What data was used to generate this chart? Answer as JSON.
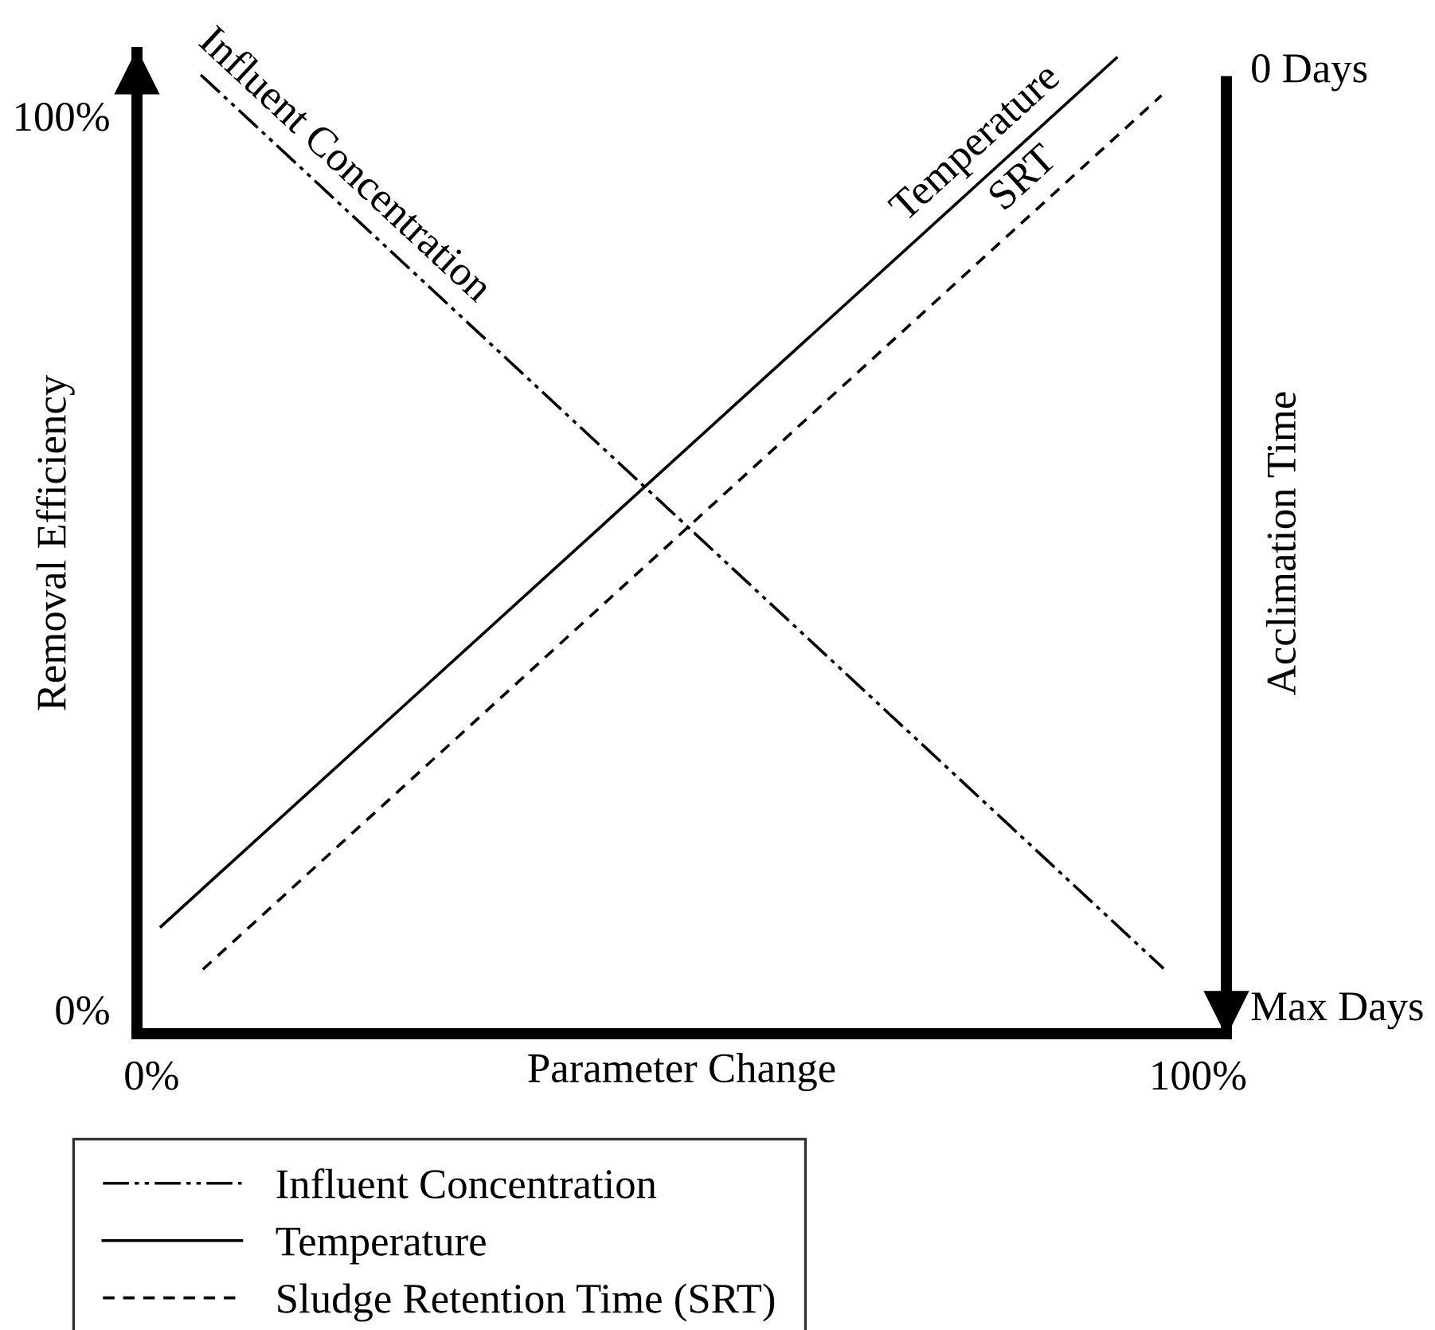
{
  "chart_data": {
    "type": "line",
    "xlabel": "Parameter Change",
    "ylabel": "Removal Efficiency",
    "y2label": "Acclimation Time",
    "xlim": [
      -1.4,
      102.7
    ],
    "xticks": [
      {
        "value": 0,
        "label": "0%"
      },
      {
        "value": 100,
        "label": "100%"
      }
    ],
    "ylim": [
      -2.7,
      107.1
    ],
    "yticks": [
      {
        "value": 0,
        "label": "0%"
      },
      {
        "value": 100,
        "label": "100%"
      }
    ],
    "grid": false,
    "legend": "bottom left",
    "marker": "none",
    "series": [
      {
        "name": "Influent Concentration",
        "color": "#000000",
        "line_style": "dashdotdot",
        "x": [
          4.7,
          96.7
        ],
        "values": [
          104.6,
          4.6
        ]
      },
      {
        "name": "Temperature",
        "color": "#000000",
        "line_style": "solid",
        "x": [
          0.9,
          92.2
        ],
        "values": [
          9.3,
          106.5
        ]
      },
      {
        "name": "Sludge Retention Time (SRT)",
        "color": "#000000",
        "line_style": "dashed",
        "x": [
          4.9,
          96.5
        ],
        "values": [
          4.5,
          102.3
        ]
      }
    ],
    "annotations": [
      "Influent Concentration",
      "Temperature",
      "SRT",
      "0 Days",
      "Max Days"
    ]
  }
}
